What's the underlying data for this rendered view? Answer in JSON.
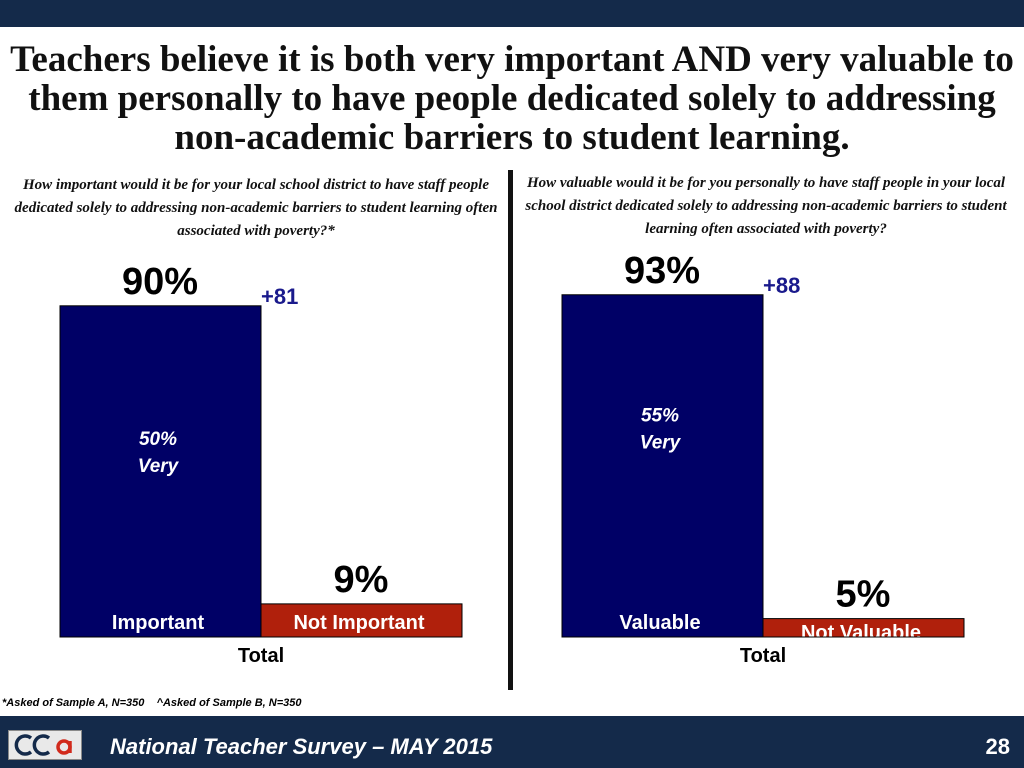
{
  "slide": {
    "title": "Teachers believe it is both very important AND very valuable to them personally to have people dedicated solely to addressing non-academic barriers to student learning.",
    "footnote": "*Asked of Sample A, N=350    ^Asked of Sample B, N=350",
    "footer": "National Teacher Survey – MAY 2015",
    "page_number": "28",
    "logo_text": "GCA"
  },
  "colors": {
    "navy": "#000066",
    "red": "#b0200c",
    "net": "#1a1a8c",
    "band": "#142a4a"
  },
  "chart_data": [
    {
      "type": "bar",
      "title": "How important would it be for your local school district to have staff people dedicated solely to addressing non-academic barriers to student learning often associated with poverty?*",
      "xlabel": "Total",
      "categories": [
        "Important",
        "Not Important"
      ],
      "values": [
        90,
        9
      ],
      "value_labels": [
        "90%",
        "9%"
      ],
      "net_label": "+81",
      "inner_label": [
        "50%",
        "Very"
      ],
      "ylim": [
        0,
        100
      ],
      "colors": [
        "#000066",
        "#b0200c"
      ]
    },
    {
      "type": "bar",
      "title": "How valuable would it be for you personally to have staff people in your local school district dedicated solely to addressing non-academic barriers to student learning often associated with poverty?",
      "xlabel": "Total",
      "categories": [
        "Valuable",
        "Not Valuable"
      ],
      "values": [
        93,
        5
      ],
      "value_labels": [
        "93%",
        "5%"
      ],
      "net_label": "+88",
      "inner_label": [
        "55%",
        "Very"
      ],
      "ylim": [
        0,
        100
      ],
      "colors": [
        "#000066",
        "#b0200c"
      ]
    }
  ]
}
